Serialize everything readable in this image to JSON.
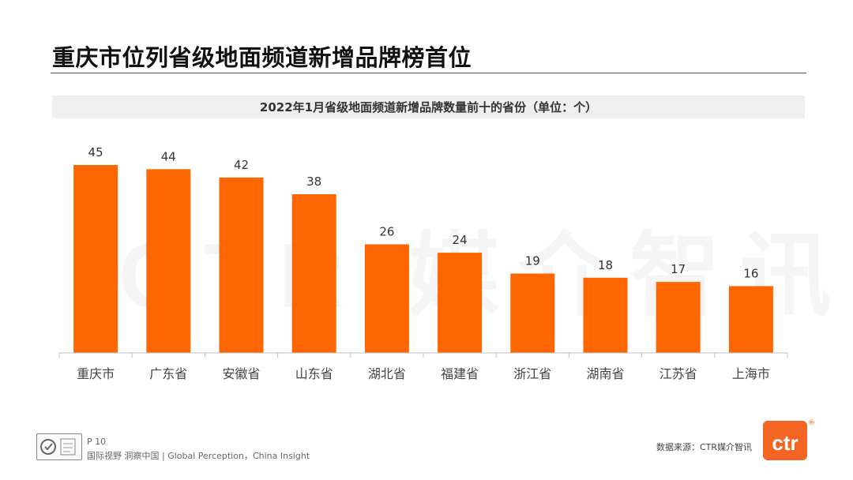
{
  "page": {
    "title": "重庆市位列省级地面频道新增品牌榜首位",
    "watermark": "CTR 媒介智讯",
    "page_number": "P 10",
    "slogan": "国际视野  洞察中国 | Global Perception，China Insight",
    "source": "数据来源：CTR媒介智讯",
    "logo_text": "ctr",
    "registered_mark": "®"
  },
  "colors": {
    "bar": "#ff6600",
    "axis": "#bfbfbf",
    "banner": "#efefef"
  },
  "icons": [
    "certification-badge-icon",
    "ctr-logo-icon"
  ],
  "chart_data": {
    "type": "bar",
    "title": "2022年1月省级地面频道新增品牌数量前十的省份（单位：个）",
    "categories": [
      "重庆市",
      "广东省",
      "安徽省",
      "山东省",
      "湖北省",
      "福建省",
      "浙江省",
      "湖南省",
      "江苏省",
      "上海市"
    ],
    "values": [
      45,
      44,
      42,
      38,
      26,
      24,
      19,
      18,
      17,
      16
    ],
    "xlabel": "",
    "ylabel": "",
    "ylim": [
      0,
      45
    ],
    "grid": false,
    "legend": "none",
    "data_labels": true
  }
}
